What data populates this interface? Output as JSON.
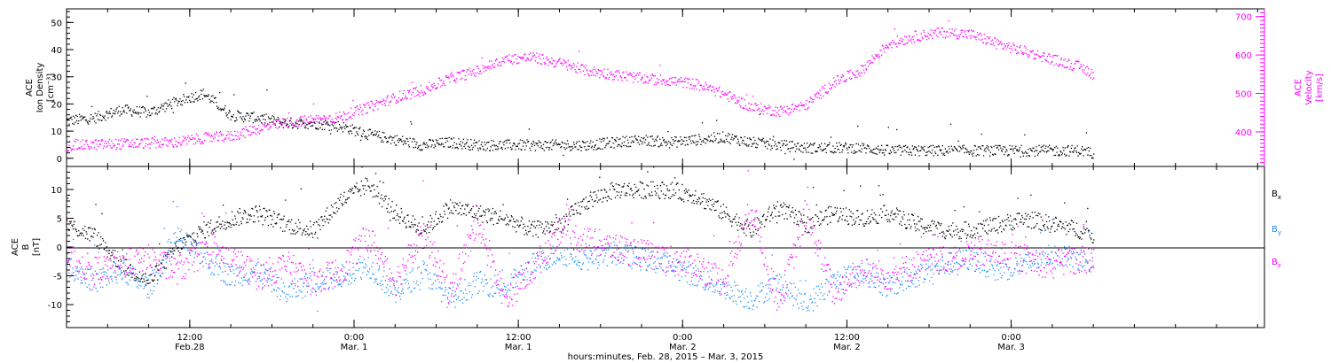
{
  "chart_data": [
    {
      "type": "scatter",
      "panel": "top",
      "left_axis_label": [
        "ACE",
        "Ion Density",
        "[cm⁻³]"
      ],
      "right_axis_label": [
        "ACE",
        "Velocity",
        "[km/s]"
      ],
      "left_ticks": [
        "50",
        "40",
        "30",
        "20",
        "10",
        "0"
      ],
      "right_ticks": [
        "700",
        "600",
        "500",
        "400"
      ],
      "ylim_left": [
        -3,
        55
      ],
      "ylim_right": [
        310,
        720
      ],
      "colors": {
        "density": "#000000",
        "velocity": "#ff00ff"
      },
      "series": [
        {
          "axis": "left",
          "values_hours": [
            0,
            2,
            4,
            6,
            8,
            10,
            12,
            14,
            16,
            18,
            20,
            22,
            24,
            26,
            28,
            30,
            32,
            34,
            36,
            38,
            40,
            42,
            44,
            46,
            48,
            50,
            52,
            54,
            56,
            58,
            60,
            62,
            64,
            66,
            68,
            70,
            72,
            74,
            75
          ],
          "values": [
            14,
            15,
            18,
            17,
            21,
            24,
            16,
            15,
            13,
            13,
            12,
            9,
            7,
            5,
            6,
            5,
            5,
            5,
            5,
            5,
            6,
            7,
            6,
            7,
            8,
            6,
            5,
            4,
            4,
            4,
            3,
            3,
            3,
            3,
            3,
            3,
            3,
            3,
            2
          ]
        },
        {
          "axis": "right",
          "values_hours": [
            0,
            2,
            4,
            6,
            8,
            10,
            12,
            14,
            16,
            18,
            20,
            22,
            24,
            26,
            28,
            30,
            32,
            34,
            36,
            38,
            40,
            42,
            44,
            46,
            48,
            50,
            52,
            54,
            56,
            58,
            60,
            62,
            64,
            66,
            68,
            70,
            72,
            74,
            75
          ],
          "values": [
            365,
            368,
            370,
            372,
            374,
            385,
            390,
            410,
            425,
            432,
            440,
            465,
            490,
            510,
            540,
            560,
            590,
            595,
            580,
            560,
            550,
            540,
            535,
            525,
            500,
            465,
            455,
            470,
            530,
            560,
            630,
            650,
            660,
            655,
            630,
            610,
            590,
            570,
            550
          ]
        }
      ]
    },
    {
      "type": "scatter",
      "panel": "bottom",
      "left_axis_label": [
        "ACE",
        "B",
        "[nT]"
      ],
      "left_ticks": [
        "10",
        "5",
        "0",
        "-5",
        "-10"
      ],
      "ylim": [
        -14,
        14
      ],
      "zero_line": true,
      "colors": {
        "Bx": "#000000",
        "By": "#1e90ff",
        "Bz": "#ff00ff"
      },
      "legend": [
        "B",
        "B",
        "B"
      ],
      "legend_subscripts": [
        "x",
        "y",
        "z"
      ],
      "series": [
        {
          "name": "Bx",
          "values_hours": [
            0,
            2,
            4,
            6,
            8,
            10,
            12,
            14,
            16,
            18,
            20,
            22,
            24,
            26,
            28,
            30,
            32,
            34,
            36,
            38,
            40,
            42,
            44,
            46,
            48,
            50,
            52,
            54,
            56,
            58,
            60,
            62,
            64,
            66,
            68,
            70,
            72,
            74,
            75
          ],
          "values": [
            4,
            2,
            -3,
            -6,
            0,
            3,
            5,
            6,
            4,
            3,
            8,
            11,
            6,
            3,
            7,
            6,
            5,
            3,
            4,
            8,
            10,
            10,
            10,
            9,
            6,
            3,
            7,
            4,
            6,
            5,
            6,
            4,
            3,
            3,
            4,
            5,
            4,
            3,
            2
          ]
        },
        {
          "name": "By",
          "values_hours": [
            0,
            2,
            4,
            6,
            8,
            10,
            12,
            14,
            16,
            18,
            20,
            22,
            24,
            26,
            28,
            30,
            32,
            34,
            36,
            38,
            40,
            42,
            44,
            46,
            48,
            50,
            52,
            54,
            56,
            58,
            60,
            62,
            64,
            66,
            68,
            70,
            72,
            74,
            75
          ],
          "values": [
            -3,
            -6,
            -4,
            -7,
            2,
            -2,
            -5,
            -4,
            -8,
            -6,
            -5,
            -3,
            -8,
            -4,
            -9,
            -6,
            -7,
            -3,
            -1,
            -2,
            -1,
            -2,
            -3,
            -5,
            -7,
            -9,
            -6,
            -10,
            -6,
            -4,
            -7,
            -5,
            -3,
            -2,
            -4,
            -3,
            -1,
            -2,
            -3
          ]
        },
        {
          "name": "Bz",
          "values_hours": [
            0,
            2,
            4,
            6,
            8,
            10,
            12,
            14,
            16,
            18,
            20,
            22,
            24,
            26,
            28,
            30,
            32,
            34,
            36,
            38,
            40,
            42,
            44,
            46,
            48,
            50,
            52,
            54,
            56,
            58,
            60,
            62,
            64,
            66,
            68,
            70,
            72,
            74,
            75
          ],
          "values": [
            -2,
            -4,
            -3,
            -2,
            -4,
            -1,
            -2,
            -5,
            -3,
            -6,
            -4,
            2,
            -6,
            3,
            -8,
            5,
            -9,
            -4,
            3,
            1,
            0,
            -1,
            -2,
            -3,
            -6,
            7,
            -10,
            6,
            -8,
            -4,
            -5,
            -3,
            -2,
            -1,
            -1,
            -2,
            -3,
            -2,
            -2
          ]
        }
      ]
    }
  ],
  "x_axis": {
    "xlabel": "hours:minutes, Feb. 28, 2015 – Mar.  3, 2015",
    "range_hours": [
      0,
      87.5
    ],
    "ticks": [
      {
        "h": 9,
        "time": "12:00",
        "date": "Feb.28"
      },
      {
        "h": 21,
        "time": "0:00",
        "date": "Mar. 1"
      },
      {
        "h": 33,
        "time": "12:00",
        "date": "Mar. 1"
      },
      {
        "h": 45,
        "time": "0:00",
        "date": "Mar. 2"
      },
      {
        "h": 57,
        "time": "12:00",
        "date": "Mar. 2"
      },
      {
        "h": 69,
        "time": "0:00",
        "date": "Mar. 3"
      }
    ]
  }
}
